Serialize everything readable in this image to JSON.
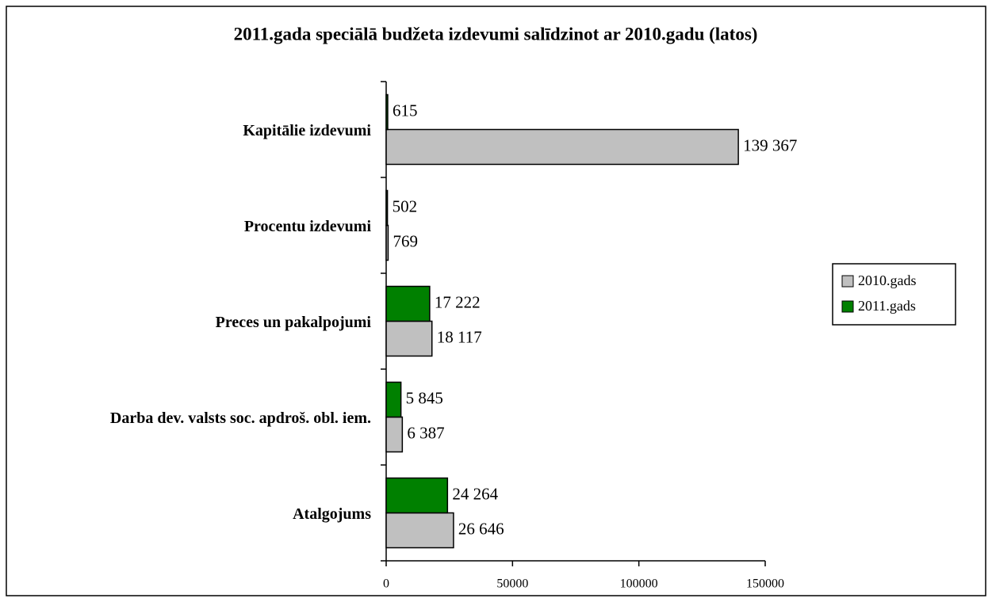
{
  "chart_data": {
    "type": "bar",
    "orientation": "horizontal",
    "title": "2011.gada speciālā budžeta izdevumi salīdzinot ar 2010.gadu (latos)",
    "categories": [
      "Kapitālie izdevumi",
      "Procentu izdevumi",
      "Preces un pakalpojumi",
      "Darba dev. valsts soc. apdroš. obl. iem.",
      "Atalgojums"
    ],
    "series": [
      {
        "name": "2010.gads",
        "color": "#c0c0c0",
        "values": [
          139367,
          769,
          18117,
          6387,
          26646
        ],
        "value_labels": [
          "139 367",
          "769",
          "18 117",
          "6 387",
          "26 646"
        ]
      },
      {
        "name": "2011.gads",
        "color": "#008000",
        "values": [
          615,
          502,
          17222,
          5845,
          24264
        ],
        "value_labels": [
          "615",
          "502",
          "17 222",
          "5 845",
          "24 264"
        ]
      }
    ],
    "xlim": [
      0,
      150000
    ],
    "xticks": [
      0,
      50000,
      100000,
      150000
    ],
    "legend": "right"
  }
}
